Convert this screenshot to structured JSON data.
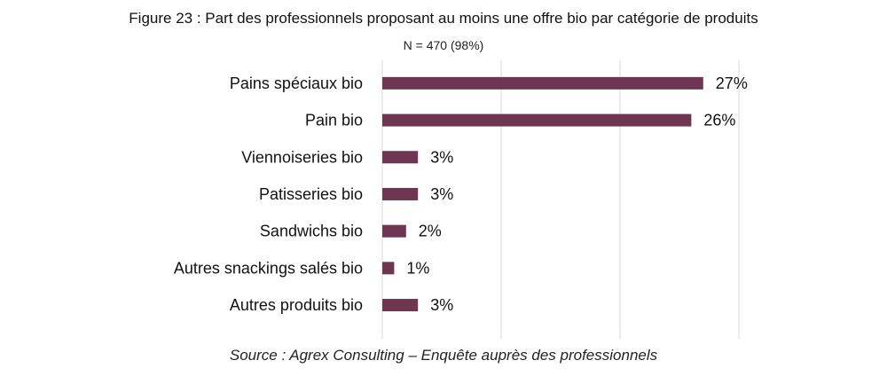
{
  "chart_data": {
    "type": "bar",
    "orientation": "horizontal",
    "title": "Figure 23 : Part des professionnels proposant au moins une offre bio par catégorie de produits",
    "subtitle": "N = 470 (98%)",
    "categories": [
      "Pains spéciaux bio",
      "Pain bio",
      "Viennoiseries bio",
      "Patisseries bio",
      "Sandwichs bio",
      "Autres snackings salés bio",
      "Autres produits bio"
    ],
    "values": [
      27,
      26,
      3,
      3,
      2,
      1,
      3
    ],
    "data_labels": [
      "27%",
      "26%",
      "3%",
      "3%",
      "2%",
      "1%",
      "3%"
    ],
    "xlim": [
      0,
      30
    ],
    "gridlines": [
      0,
      10,
      20,
      30
    ],
    "grid": true,
    "legend": "none",
    "bar_color": "#6e3650",
    "source": "Source : Agrex Consulting – Enquête auprès des professionnels"
  }
}
